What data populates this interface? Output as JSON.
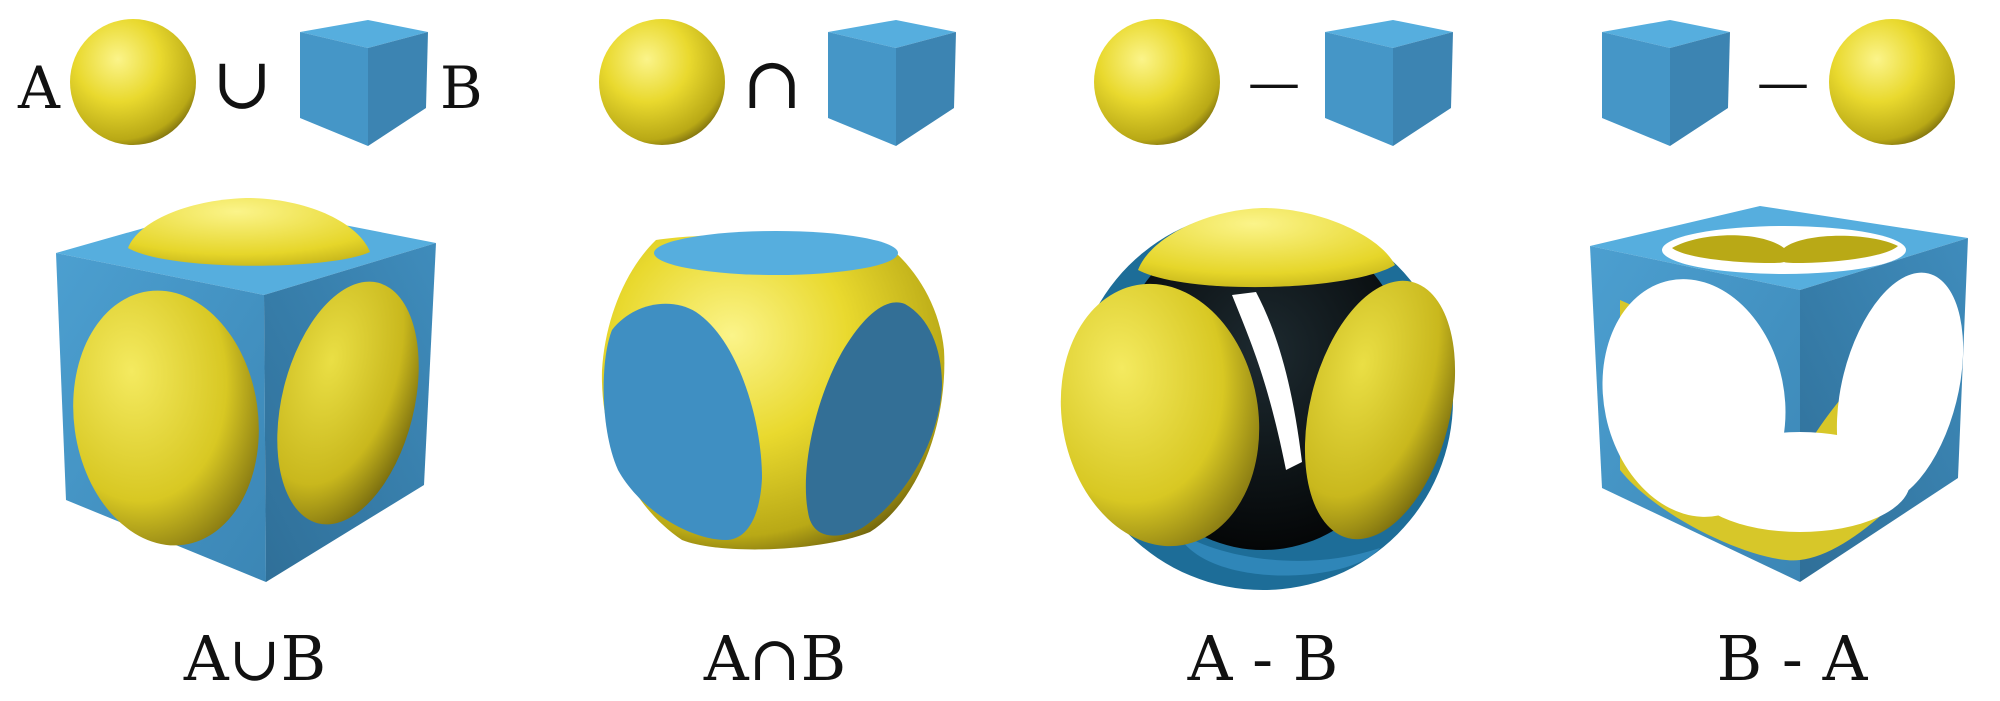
{
  "operand_labels": {
    "a": "A",
    "b": "B"
  },
  "operators": {
    "union": "∪",
    "intersection": "∩",
    "difference": "—"
  },
  "captions": {
    "union": "A∪B",
    "intersection": "A∩B",
    "a_minus_b": "A - B",
    "b_minus_a": "B - A"
  },
  "colors": {
    "sphere": "#e6d62a",
    "sphere_highlight": "#fbf48a",
    "sphere_shadow": "#7d6f10",
    "cube_top": "#56aede",
    "cube_left": "#4596c7",
    "cube_right": "#3c84b2",
    "hole": "#ffffff",
    "dark_interior": "#0c1418"
  },
  "shapes": {
    "sphere": "sphere-icon",
    "cube": "cube-icon"
  }
}
